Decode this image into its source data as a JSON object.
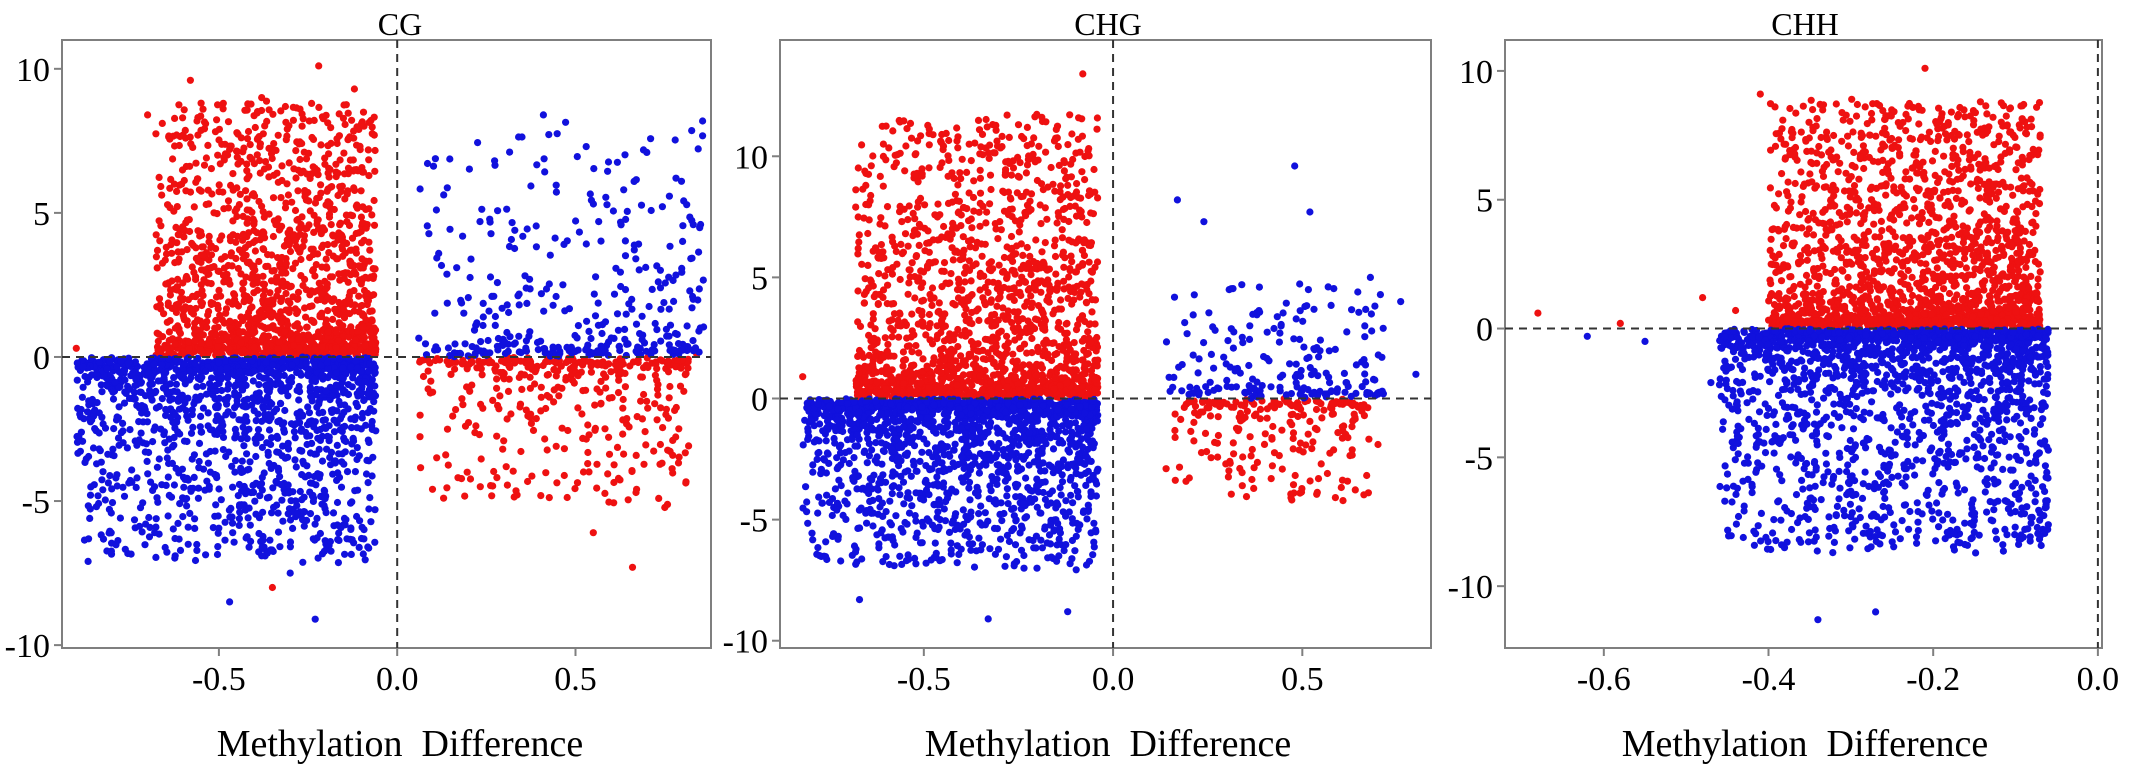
{
  "figure": {
    "xlabel_common": "Methylation  Difference"
  },
  "colors": {
    "up": "#ee1111",
    "down": "#1111dd"
  },
  "chart_data": [
    {
      "type": "scatter",
      "title": "CG",
      "xlabel": "Methylation  Difference",
      "ylabel": "",
      "xlim": [
        -0.94,
        0.88
      ],
      "ylim": [
        -10.1,
        11.0
      ],
      "xticks": [
        -0.5,
        0.0,
        0.5
      ],
      "xtick_labels": [
        "-0.5",
        "0.0",
        "0.5"
      ],
      "yticks": [
        10,
        5,
        0,
        -5,
        -10
      ],
      "ytick_labels": [
        "10",
        "5",
        "0",
        "-5",
        "-10"
      ],
      "reference_lines": {
        "x": 0,
        "y": 0
      },
      "series": [
        {
          "name": "red",
          "color": "#ee1111",
          "clusters": [
            {
              "count": 1500,
              "x_range": [
                -0.68,
                -0.06
              ],
              "y_shape": "up",
              "y_max": 10.1
            },
            {
              "count": 380,
              "x_range": [
                0.06,
                0.82
              ],
              "y_shape": "down_small",
              "y_max": 5
            }
          ],
          "sample_points": [
            [
              -0.22,
              10.1
            ],
            [
              -0.38,
              9.0
            ],
            [
              -0.58,
              9.6
            ],
            [
              -0.12,
              9.3
            ],
            [
              -0.7,
              8.4
            ],
            [
              -0.35,
              -8.0
            ],
            [
              0.66,
              -7.3
            ],
            [
              -0.47,
              7.2
            ],
            [
              -0.9,
              0.3
            ],
            [
              0.84,
              0.1
            ],
            [
              0.13,
              -4.9
            ],
            [
              0.55,
              -6.1
            ],
            [
              -0.1,
              8.1
            ]
          ]
        },
        {
          "name": "blue",
          "color": "#1111dd",
          "clusters": [
            {
              "count": 1500,
              "x_range": [
                -0.9,
                -0.06
              ],
              "y_shape": "down",
              "y_min": -9.1
            },
            {
              "count": 350,
              "x_range": [
                0.06,
                0.86
              ],
              "y_shape": "up_small",
              "y_max": 8.4
            }
          ],
          "sample_points": [
            [
              -0.23,
              -9.1
            ],
            [
              -0.47,
              -8.5
            ],
            [
              -0.3,
              -7.5
            ],
            [
              -0.1,
              -6.3
            ],
            [
              0.41,
              8.4
            ],
            [
              0.53,
              7.3
            ],
            [
              0.7,
              7.1
            ],
            [
              0.11,
              5.1
            ],
            [
              -0.68,
              -6.1
            ],
            [
              0.83,
              2.0
            ],
            [
              -0.95,
              -1.6
            ],
            [
              -0.38,
              -6.9
            ]
          ]
        }
      ]
    },
    {
      "type": "scatter",
      "title": "CHG",
      "xlabel": "Methylation  Difference",
      "ylabel": "",
      "xlim": [
        -0.88,
        0.84
      ],
      "ylim": [
        -10.3,
        14.8
      ],
      "xticks": [
        -0.5,
        0.0,
        0.5
      ],
      "xtick_labels": [
        "-0.5",
        "0.0",
        "0.5"
      ],
      "yticks": [
        10,
        5,
        0,
        -5,
        -10
      ],
      "ytick_labels": [
        "10",
        "5",
        "0",
        "-5",
        "-10"
      ],
      "reference_lines": {
        "x": 0,
        "y": 0
      },
      "series": [
        {
          "name": "red",
          "color": "#ee1111",
          "clusters": [
            {
              "count": 1600,
              "x_range": [
                -0.68,
                -0.04
              ],
              "y_shape": "up",
              "y_max": 13.4
            },
            {
              "count": 220,
              "x_range": [
                0.14,
                0.68
              ],
              "y_shape": "down_small",
              "y_max": 4.1
            }
          ],
          "sample_points": [
            [
              -0.08,
              13.4
            ],
            [
              -0.28,
              11.7
            ],
            [
              -0.38,
              10.5
            ],
            [
              -0.68,
              7.9
            ],
            [
              -0.12,
              8.8
            ],
            [
              0.14,
              -2.9
            ],
            [
              0.47,
              -4.1
            ],
            [
              0.55,
              -2.7
            ],
            [
              0.7,
              -1.9
            ],
            [
              -0.82,
              0.9
            ],
            [
              -0.2,
              9.0
            ]
          ]
        },
        {
          "name": "blue",
          "color": "#1111dd",
          "clusters": [
            {
              "count": 1600,
              "x_range": [
                -0.82,
                -0.04
              ],
              "y_shape": "down",
              "y_min": -9.1
            },
            {
              "count": 200,
              "x_range": [
                0.14,
                0.72
              ],
              "y_shape": "up_small",
              "y_max": 4.7
            }
          ],
          "sample_points": [
            [
              -0.33,
              -9.1
            ],
            [
              -0.12,
              -8.8
            ],
            [
              -0.67,
              -8.3
            ],
            [
              -0.38,
              -6.0
            ],
            [
              0.48,
              9.6
            ],
            [
              0.17,
              8.2
            ],
            [
              0.24,
              7.3
            ],
            [
              0.52,
              7.7
            ],
            [
              0.34,
              4.7
            ],
            [
              0.76,
              4.0
            ],
            [
              0.68,
              5.0
            ],
            [
              0.8,
              1.0
            ]
          ]
        }
      ]
    },
    {
      "type": "scatter",
      "title": "CHH",
      "xlabel": "Methylation  Difference",
      "ylabel": "",
      "xlim": [
        -0.72,
        0.005
      ],
      "ylim": [
        -12.4,
        11.2
      ],
      "xticks": [
        -0.6,
        -0.4,
        -0.2,
        0.0
      ],
      "xtick_labels": [
        "-0.6",
        "-0.4",
        "-0.2",
        "0.0"
      ],
      "yticks": [
        10,
        5,
        0,
        -5,
        -10
      ],
      "ytick_labels": [
        "10",
        "5",
        "0",
        "-5",
        "-10"
      ],
      "reference_lines": {
        "x": 0,
        "y": 0
      },
      "series": [
        {
          "name": "red",
          "color": "#ee1111",
          "clusters": [
            {
              "count": 1800,
              "x_range": [
                -0.4,
                -0.07
              ],
              "y_shape": "up",
              "y_max": 10.1
            }
          ],
          "sample_points": [
            [
              -0.21,
              10.1
            ],
            [
              -0.41,
              9.1
            ],
            [
              -0.19,
              8.2
            ],
            [
              -0.11,
              7.9
            ],
            [
              -0.08,
              5.6
            ],
            [
              -0.07,
              2.2
            ],
            [
              -0.68,
              0.6
            ],
            [
              -0.58,
              0.2
            ],
            [
              -0.48,
              1.2
            ],
            [
              -0.44,
              0.7
            ]
          ]
        },
        {
          "name": "blue",
          "color": "#1111dd",
          "clusters": [
            {
              "count": 1800,
              "x_range": [
                -0.46,
                -0.06
              ],
              "y_shape": "down",
              "y_min": -11.3
            }
          ],
          "sample_points": [
            [
              -0.34,
              -11.3
            ],
            [
              -0.27,
              -11.0
            ],
            [
              -0.32,
              -8.3
            ],
            [
              -0.29,
              -7.0
            ],
            [
              -0.1,
              -6.0
            ],
            [
              -0.62,
              -0.3
            ],
            [
              -0.55,
              -0.5
            ],
            [
              -0.47,
              -2.1
            ],
            [
              -0.4,
              -3.1
            ]
          ]
        }
      ]
    }
  ]
}
